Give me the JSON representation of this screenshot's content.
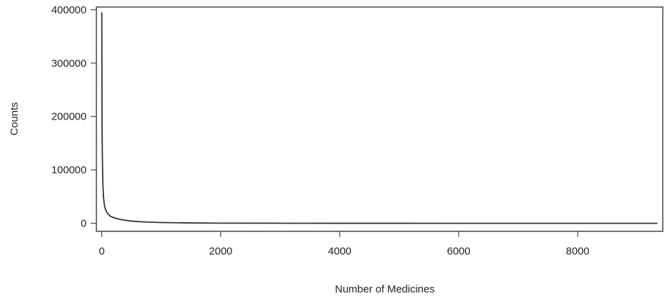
{
  "chart_data": {
    "type": "line",
    "title": "",
    "xlabel": "Number of Medicines",
    "ylabel": "Counts",
    "xlim": [
      -90,
      9430
    ],
    "ylim": [
      -15000,
      405000
    ],
    "xticks": [
      0,
      2000,
      4000,
      6000,
      8000
    ],
    "xtick_labels": [
      "0",
      "2000",
      "4000",
      "6000",
      "8000"
    ],
    "yticks": [
      0,
      100000,
      200000,
      300000,
      400000
    ],
    "ytick_labels": [
      "0",
      "100000",
      "200000",
      "300000",
      "400000"
    ],
    "grid": false,
    "series": [
      {
        "x": [
          1,
          5,
          10,
          15,
          20,
          30,
          40,
          50,
          60,
          80,
          100,
          150,
          200,
          300,
          400,
          500,
          700,
          1000,
          1500,
          2000,
          3000,
          4000,
          5000,
          6000,
          7000,
          8000,
          9000,
          9340
        ],
        "y": [
          395000,
          180000,
          130000,
          95000,
          70000,
          48000,
          38000,
          31000,
          27000,
          22000,
          18000,
          13000,
          10500,
          7500,
          5500,
          4200,
          2600,
          1500,
          700,
          350,
          150,
          80,
          40,
          20,
          10,
          5,
          2,
          1
        ]
      }
    ]
  }
}
